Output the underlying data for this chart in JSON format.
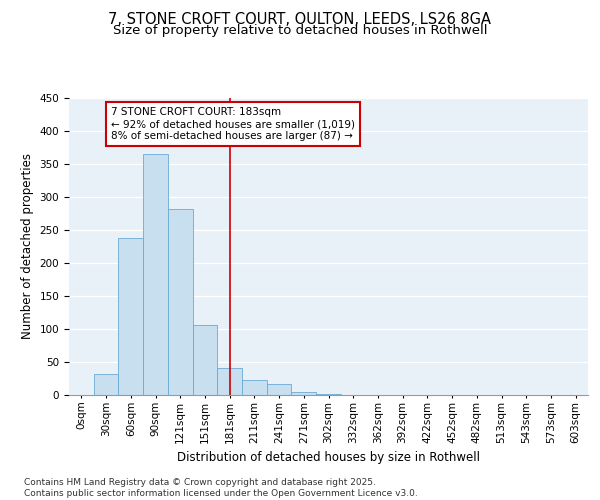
{
  "title_line1": "7, STONE CROFT COURT, OULTON, LEEDS, LS26 8GA",
  "title_line2": "Size of property relative to detached houses in Rothwell",
  "xlabel": "Distribution of detached houses by size in Rothwell",
  "ylabel": "Number of detached properties",
  "bar_labels": [
    "0sqm",
    "30sqm",
    "60sqm",
    "90sqm",
    "121sqm",
    "151sqm",
    "181sqm",
    "211sqm",
    "241sqm",
    "271sqm",
    "302sqm",
    "332sqm",
    "362sqm",
    "392sqm",
    "422sqm",
    "452sqm",
    "482sqm",
    "513sqm",
    "543sqm",
    "573sqm",
    "603sqm"
  ],
  "bar_values": [
    0,
    32,
    237,
    365,
    282,
    106,
    41,
    22,
    17,
    5,
    2,
    0,
    0,
    0,
    0,
    0,
    0,
    0,
    0,
    0,
    0
  ],
  "bar_color": "#c8dff0",
  "bar_edgecolor": "#6aaad4",
  "vline_x": 6,
  "vline_color": "#cc0000",
  "annotation_text": "7 STONE CROFT COURT: 183sqm\n← 92% of detached houses are smaller (1,019)\n8% of semi-detached houses are larger (87) →",
  "annotation_box_color": "#cc0000",
  "ylim": [
    0,
    450
  ],
  "yticks": [
    0,
    50,
    100,
    150,
    200,
    250,
    300,
    350,
    400,
    450
  ],
  "bg_color": "#e8f0f8",
  "grid_color": "#ffffff",
  "footer_text": "Contains HM Land Registry data © Crown copyright and database right 2025.\nContains public sector information licensed under the Open Government Licence v3.0.",
  "title_fontsize": 10.5,
  "subtitle_fontsize": 9.5,
  "axis_label_fontsize": 8.5,
  "tick_fontsize": 7.5,
  "annotation_fontsize": 7.5,
  "footer_fontsize": 6.5
}
